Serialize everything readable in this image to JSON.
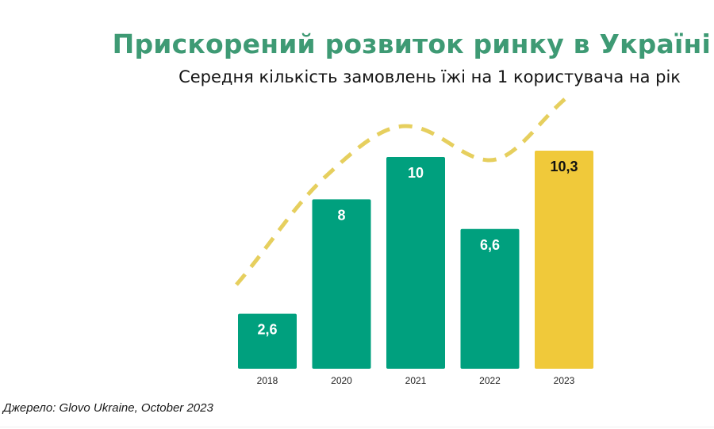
{
  "title": "Прискорений розвиток ринку в Україні",
  "subtitle": "Середня кількість замовлень їжі на 1 користувача на рік",
  "source": "Джерело: Glovo Ukraine, October 2023",
  "colors": {
    "title": "#3e9a74",
    "bar": "#00a07e",
    "bar_highlight": "#f0c93a",
    "trend": "#e6cf5e",
    "label_on_bar": "#ffffff",
    "label_on_highlight": "#111111"
  },
  "chart_data": {
    "type": "bar",
    "title": "Прискорений розвиток ринку в Україні",
    "subtitle": "Середня кількість замовлень їжі на 1 користувача на рік",
    "categories": [
      "2018",
      "2020",
      "2021",
      "2022",
      "2023"
    ],
    "values": [
      2.6,
      8,
      10,
      6.6,
      10.3
    ],
    "value_labels": [
      "2,6",
      "8",
      "10",
      "6,6",
      "10,3"
    ],
    "highlight_index": 4,
    "xlabel": "",
    "ylabel": "",
    "ylim": [
      0,
      10.3
    ],
    "grid": false,
    "legend": "none",
    "annotations": [
      "dashed trend curve above bars"
    ]
  }
}
